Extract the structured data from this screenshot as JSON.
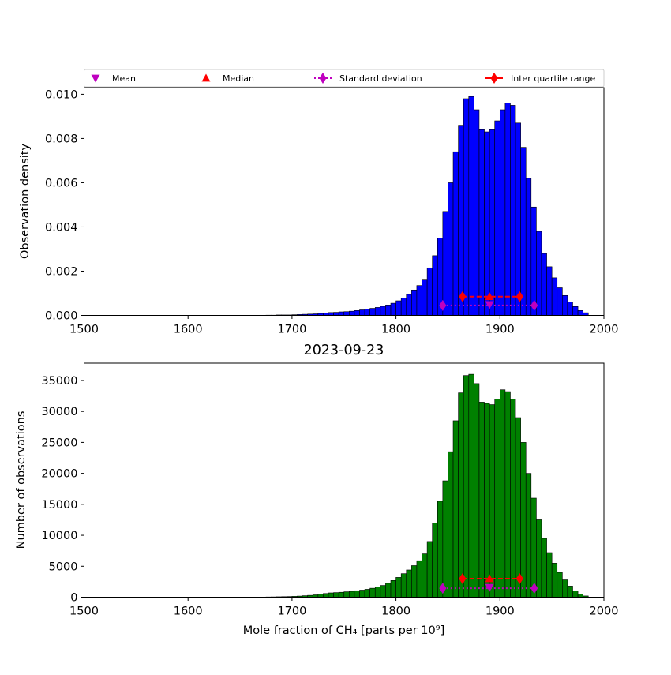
{
  "chart_data": [
    {
      "type": "bar",
      "title": "",
      "xlabel": "",
      "ylabel": "Observation density",
      "xlim": [
        1500,
        2000
      ],
      "ylim": [
        0,
        0.0103
      ],
      "x_ticks": [
        "1500",
        "1600",
        "1700",
        "1800",
        "1900",
        "2000"
      ],
      "y_ticks": [
        "0.000",
        "0.002",
        "0.004",
        "0.006",
        "0.008",
        "0.010"
      ],
      "bar_color": "#0000ff",
      "bin_width": 5,
      "bin_start": 1675,
      "values": [
        1e-05,
        1e-05,
        2e-05,
        2e-05,
        2e-05,
        3e-05,
        4e-05,
        5e-05,
        6e-05,
        7e-05,
        9e-05,
        0.00011,
        0.00013,
        0.00014,
        0.00016,
        0.00017,
        0.00019,
        0.00022,
        0.00025,
        0.00028,
        0.00032,
        0.00036,
        0.00041,
        0.00047,
        0.00055,
        0.00066,
        0.00078,
        0.00095,
        0.00115,
        0.00135,
        0.0016,
        0.00215,
        0.0027,
        0.0035,
        0.0047,
        0.006,
        0.0074,
        0.0086,
        0.0098,
        0.0099,
        0.0093,
        0.0084,
        0.0083,
        0.0084,
        0.0088,
        0.0093,
        0.0096,
        0.0095,
        0.0087,
        0.0076,
        0.0062,
        0.0049,
        0.0038,
        0.0028,
        0.0022,
        0.0017,
        0.00125,
        0.0009,
        0.0006,
        0.0004,
        0.00022,
        0.00012
      ],
      "markers": {
        "mean": 1890,
        "median": 1890,
        "std_range": [
          1845,
          1933
        ],
        "iqr_range": [
          1864,
          1919
        ],
        "std_y": 0.00045,
        "iqr_y": 0.00085
      },
      "legend": {
        "placement": "top",
        "entries": [
          {
            "label": "Mean",
            "marker": "triangle-down",
            "color": "#bf00bf"
          },
          {
            "label": "Median",
            "marker": "triangle-up",
            "color": "#ff0000"
          },
          {
            "label": "Standard deviation",
            "marker": "diamond-dotted",
            "color": "#bf00bf"
          },
          {
            "label": "Inter quartile range",
            "marker": "diamond-dashed",
            "color": "#ff0000"
          }
        ]
      }
    },
    {
      "type": "bar",
      "title": "2023-09-23",
      "xlabel": "Mole fraction of CH₄ [parts per 10⁹]",
      "ylabel": "Number of observations",
      "xlim": [
        1500,
        2000
      ],
      "ylim": [
        0,
        37800
      ],
      "x_ticks": [
        "1500",
        "1600",
        "1700",
        "1800",
        "1900",
        "2000"
      ],
      "y_ticks": [
        "0",
        "5000",
        "10000",
        "15000",
        "20000",
        "25000",
        "30000",
        "35000"
      ],
      "bar_color": "#008000",
      "bin_width": 5,
      "bin_start": 1675,
      "values": [
        40,
        50,
        70,
        90,
        110,
        140,
        180,
        240,
        300,
        380,
        480,
        600,
        700,
        750,
        800,
        880,
        950,
        1050,
        1150,
        1280,
        1450,
        1650,
        1900,
        2250,
        2700,
        3200,
        3800,
        4400,
        5100,
        5900,
        7000,
        9000,
        12000,
        15500,
        18800,
        23500,
        28500,
        33000,
        35800,
        36000,
        34500,
        31500,
        31300,
        31100,
        32000,
        33500,
        33200,
        32000,
        29000,
        25000,
        20000,
        16000,
        12500,
        9500,
        7200,
        5500,
        4000,
        2800,
        1800,
        1000,
        500,
        200
      ],
      "markers": {
        "mean": 1890,
        "median": 1890,
        "std_range": [
          1845,
          1933
        ],
        "iqr_range": [
          1864,
          1919
        ],
        "std_y": 1450,
        "iqr_y": 3000
      }
    }
  ]
}
